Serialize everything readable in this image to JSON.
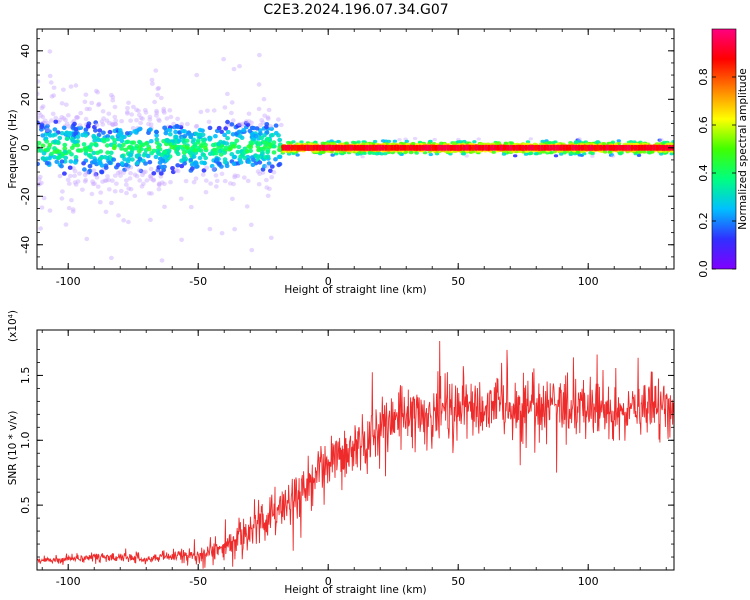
{
  "figure": {
    "title": "C2E3.2024.196.07.34.G07"
  },
  "chart_data": [
    {
      "type": "heatmap",
      "xlabel": "Height of straight line (km)",
      "ylabel": "Frequency (Hz)",
      "xlim": [
        -112,
        133
      ],
      "ylim": [
        -50,
        49
      ],
      "xticks": [
        -100,
        -50,
        0,
        50,
        100
      ],
      "yticks": [
        -40,
        -20,
        0,
        20,
        40
      ],
      "colorbar": {
        "label": "Normalized spectral amplitude",
        "range": [
          0.0,
          1.0
        ],
        "ticks": [
          0.0,
          0.2,
          0.4,
          0.6,
          0.8
        ],
        "colormap": "rainbow",
        "colors": [
          "#8000ff",
          "#3030ff",
          "#00c0ff",
          "#00ff80",
          "#40ff00",
          "#ffff00",
          "#ff8000",
          "#ff0000",
          "#ff0080"
        ]
      },
      "band_description": "spread noisy cloud below ~-20 km, collapsing to narrow red band near 0 Hz above ~-20 km"
    },
    {
      "type": "line",
      "xlabel": "Height of straight line (km)",
      "ylabel": "SNR (10 * v/v)",
      "yunit_multiplier": "(x10⁴)",
      "xlim": [
        -112,
        133
      ],
      "ylim": [
        0,
        1.85
      ],
      "xticks": [
        -100,
        -50,
        0,
        50,
        100
      ],
      "yticks": [
        0.5,
        1.0,
        1.5
      ],
      "ytick_labels": [
        "0.5",
        "1.0",
        "1.5"
      ],
      "color": "#ee2a2a",
      "trend": {
        "x": [
          -112,
          -90,
          -70,
          -50,
          -40,
          -30,
          -20,
          -10,
          0,
          10,
          20,
          30,
          40,
          50,
          60,
          70,
          80,
          90,
          100,
          110,
          120,
          133
        ],
        "y": [
          0.07,
          0.1,
          0.09,
          0.12,
          0.17,
          0.3,
          0.45,
          0.6,
          0.78,
          0.95,
          1.08,
          1.18,
          1.22,
          1.24,
          1.25,
          1.26,
          1.26,
          1.25,
          1.24,
          1.25,
          1.23,
          1.25
        ]
      },
      "noise_amplitude": {
        "x": [
          -112,
          -60,
          -40,
          -20,
          0,
          20,
          60,
          133
        ],
        "y": [
          0.03,
          0.04,
          0.08,
          0.18,
          0.2,
          0.2,
          0.2,
          0.22
        ]
      }
    }
  ]
}
